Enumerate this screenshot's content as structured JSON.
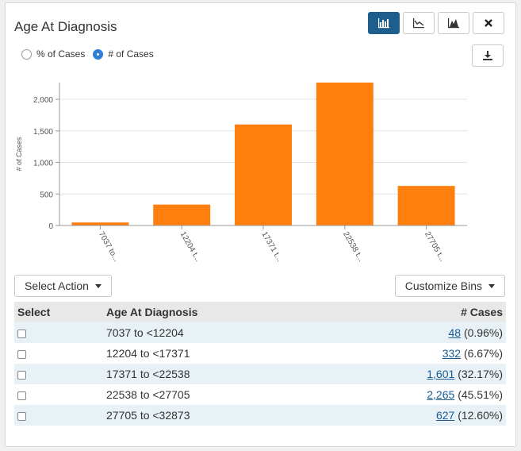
{
  "card": {
    "title": "Age At Diagnosis"
  },
  "toolbar": {
    "bar_chart_icon": "bar-chart-icon",
    "line_chart_icon": "line-chart-icon",
    "area_chart_icon": "area-chart-icon",
    "close_icon": "close-icon",
    "download_icon": "download-icon",
    "active_color": "#1d5e8c"
  },
  "radios": [
    {
      "label": "% of Cases",
      "checked": false
    },
    {
      "label": "# of Cases",
      "checked": true
    }
  ],
  "chart_data": {
    "type": "bar",
    "categories": [
      "7037 to <12204",
      "12204 to <17371",
      "17371 to <22538",
      "22538 to <27705",
      "27705 to <32873"
    ],
    "tick_labels": [
      "7037 to...",
      "12204 t...",
      "17371 t...",
      "22538 t...",
      "27705 t..."
    ],
    "values": [
      48,
      332,
      1601,
      2265,
      627
    ],
    "ylabel": "# of Cases",
    "xlabel": "",
    "yticks": [
      0,
      500,
      1000,
      1500,
      2000
    ],
    "ytick_labels": [
      "0",
      "500",
      "1,000",
      "1,500",
      "2,000"
    ],
    "ylim": [
      0,
      2265
    ],
    "bar_color": "#ff7f0e",
    "grid": true
  },
  "actions": {
    "select_action": "Select Action",
    "customize_bins": "Customize Bins"
  },
  "table": {
    "headers": {
      "select": "Select",
      "age": "Age At Diagnosis",
      "cases": "# Cases"
    },
    "rows": [
      {
        "range": "7037 to <12204",
        "count": "48",
        "pct": "(0.96%)"
      },
      {
        "range": "12204 to <17371",
        "count": "332",
        "pct": "(6.67%)"
      },
      {
        "range": "17371 to <22538",
        "count": "1,601",
        "pct": "(32.17%)"
      },
      {
        "range": "22538 to <27705",
        "count": "2,265",
        "pct": "(45.51%)"
      },
      {
        "range": "27705 to <32873",
        "count": "627",
        "pct": "(12.60%)"
      }
    ]
  }
}
